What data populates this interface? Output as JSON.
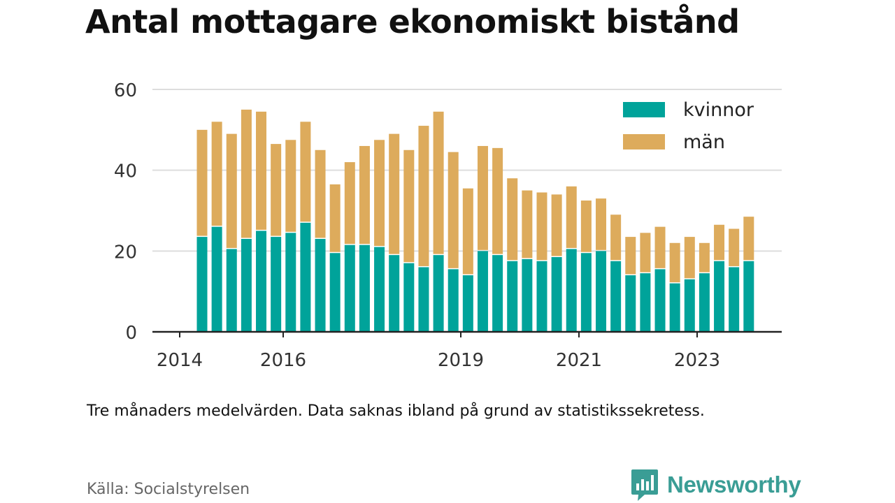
{
  "title": "Antal mottagare ekonomiskt bistånd",
  "note": "Tre månaders medelvärden. Data saknas ibland på grund av statistikssekretess.",
  "source": "Källa: Socialstyrelsen",
  "brand": {
    "name": "Newsworthy",
    "icon": "bar-chart-speech-bubble-icon",
    "color": "#3a9d95"
  },
  "colors": {
    "kvinnor": "#00a39a",
    "man": "#ddab5c",
    "grid": "#dddddd",
    "axis": "#222222"
  },
  "chart_data": {
    "type": "bar",
    "stacked": true,
    "title": "Antal mottagare ekonomiskt bistånd",
    "xlabel": "",
    "ylabel": "",
    "ylim": [
      0,
      60
    ],
    "y_ticks": [
      0,
      20,
      40,
      60
    ],
    "x_ticks": [
      "2014",
      "2016",
      "2019",
      "2021",
      "2023"
    ],
    "x_tick_index": [
      -1,
      6,
      18,
      26,
      34
    ],
    "grid": true,
    "legend": {
      "position": "top-right",
      "entries": [
        "kvinnor",
        "män"
      ]
    },
    "series": [
      {
        "name": "kvinnor",
        "color": "#00a39a",
        "values": [
          23.5,
          26,
          20.5,
          23,
          25,
          23.5,
          24.5,
          27,
          23,
          19.5,
          21.5,
          21.5,
          21,
          19,
          17,
          16,
          19,
          15.5,
          14,
          20,
          19,
          17.5,
          18,
          17.5,
          18.5,
          20.5,
          19.5,
          20,
          17.5,
          14,
          14.5,
          15.5,
          12,
          13,
          14.5,
          17.5,
          16,
          17.5
        ]
      },
      {
        "name": "män",
        "color": "#ddab5c",
        "values": [
          26.5,
          26,
          28.5,
          32,
          29.5,
          23,
          23,
          25,
          22,
          17,
          20.5,
          24.5,
          26.5,
          30,
          28,
          35,
          35.5,
          29,
          21.5,
          26,
          26.5,
          20.5,
          17,
          17,
          15.5,
          15.5,
          13,
          13,
          11.5,
          9.5,
          10,
          10.5,
          10,
          10.5,
          7.5,
          9,
          9.5,
          11
        ]
      }
    ]
  }
}
